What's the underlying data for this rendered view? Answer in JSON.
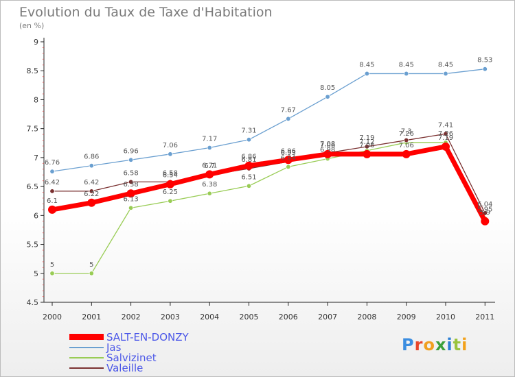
{
  "chart_data": {
    "type": "line",
    "title": "Evolution du Taux de Taxe d'Habitation",
    "subtitle": "(en %)",
    "categories": [
      "2000",
      "2001",
      "2002",
      "2003",
      "2004",
      "2005",
      "2006",
      "2007",
      "2008",
      "2009",
      "2010",
      "2011"
    ],
    "y_ticks": [
      "4.5",
      "5",
      "5.5",
      "6",
      "6.5",
      "7",
      "7.5",
      "8",
      "8.5",
      "9"
    ],
    "ylim": [
      4.5,
      9
    ],
    "grid": false,
    "legend_position": "bottom-left",
    "series": [
      {
        "name": "SALT-EN-DONZY",
        "color": "#ff0000",
        "values": [
          6.1,
          6.22,
          6.38,
          6.54,
          6.71,
          6.86,
          6.96,
          7.06,
          7.06,
          7.06,
          7.19,
          5.9
        ],
        "labels": [
          "6.1",
          "6.22",
          "6.38",
          "6.54",
          "6.71",
          "6.86",
          "6.96",
          "7.06",
          "7.06",
          "7.06",
          "7.19",
          "5.9"
        ]
      },
      {
        "name": "Jas",
        "color": "#6a9fd0",
        "values": [
          6.76,
          6.86,
          6.96,
          7.06,
          7.17,
          7.31,
          7.67,
          8.05,
          8.45,
          8.45,
          8.45,
          8.53
        ],
        "labels": [
          "6.76",
          "6.86",
          "6.96",
          "7.06",
          "7.17",
          "7.31",
          "7.67",
          "8.05",
          "8.45",
          "8.45",
          "8.45",
          "8.53"
        ]
      },
      {
        "name": "Salvizinet",
        "color": "#99cc55",
        "values": [
          5,
          5,
          6.13,
          6.25,
          6.38,
          6.51,
          6.84,
          6.98,
          7.12,
          7.26,
          7.26,
          5.95
        ],
        "labels": [
          "5",
          "5",
          "6.13",
          "6.25",
          "6.38",
          "6.51",
          "6.84",
          "6.98",
          "7.12",
          "7.26",
          "7.26",
          "5.95"
        ]
      },
      {
        "name": "Valeille",
        "color": "#7a3030",
        "values": [
          6.42,
          6.42,
          6.58,
          6.58,
          6.7,
          6.81,
          6.93,
          7.08,
          7.19,
          7.3,
          7.41,
          6.04
        ],
        "labels": [
          "6.42",
          "6.42",
          "6.58",
          "6.58",
          "6.7",
          "6.81",
          "6.93",
          "7.08",
          "7.19",
          "7.3",
          "7.41",
          "6.04"
        ]
      }
    ]
  },
  "brand": {
    "letters": [
      "P",
      "r",
      "o",
      "x",
      "i",
      "t",
      "i"
    ],
    "colors": [
      "#3b8de0",
      "#e8462a",
      "#f0a020",
      "#3aa03a",
      "#2b7fd4",
      "#9ac33c",
      "#f2a21b"
    ]
  }
}
